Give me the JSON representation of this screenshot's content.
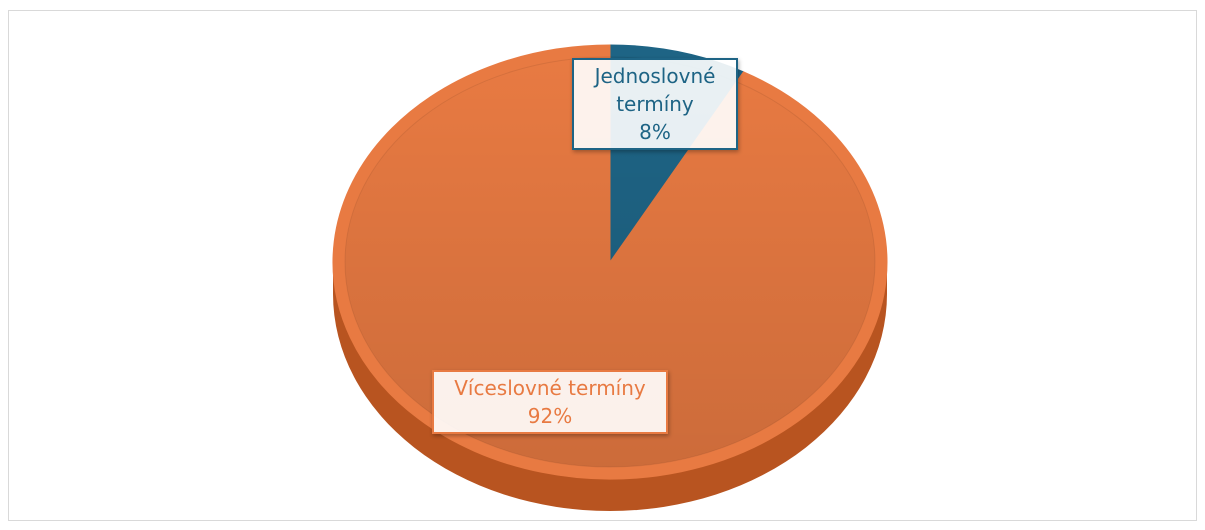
{
  "chart_data": {
    "type": "pie",
    "categories": [
      "Jednoslovné termíny",
      "Víceslovné termíny"
    ],
    "values": [
      8,
      92
    ],
    "value_labels": [
      "8%",
      "92%"
    ],
    "colors": [
      "#1e6485",
      "#e87a42"
    ],
    "side_colors": [
      "#123f55",
      "#b85420"
    ],
    "start_angle": 0,
    "three_d": true
  }
}
